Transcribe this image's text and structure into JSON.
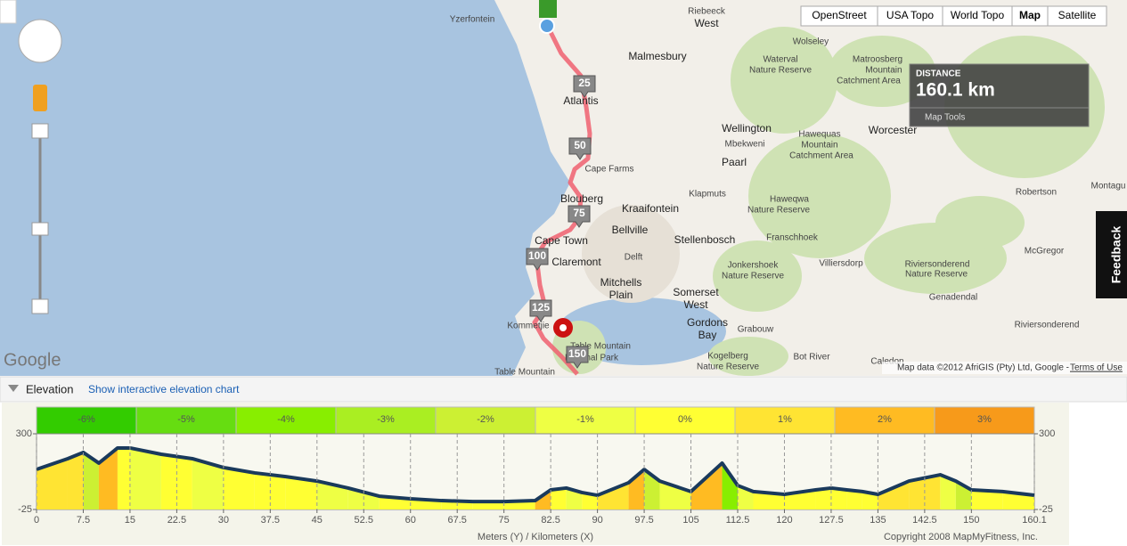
{
  "map_types": [
    "OpenStreet",
    "USA Topo",
    "World Topo",
    "Map",
    "Satellite"
  ],
  "active_map_type": "Map",
  "distance": {
    "heading": "DISTANCE",
    "value": "160.1 km",
    "tools": "Map Tools"
  },
  "map_labels": [
    "Yzerfontein",
    "Riebeeck",
    "West",
    "Wolseley",
    "Malmesbury",
    "Waterval",
    "Nature Reserve",
    "Matroosberg",
    "Mountain",
    "Catchment Area",
    "Atlantis",
    "Wellington",
    "Hawequas",
    "Mountain",
    "Catchment Area",
    "Worcester",
    "Mbekweni",
    "Paarl",
    "Cape Farms",
    "Klapmuts",
    "Robertson",
    "Blouberg",
    "Haweqwa",
    "Nature Reserve",
    "Kraaifontein",
    "Bellville",
    "Cape Town",
    "Stellenbosch",
    "Franschhoek",
    "Montagu",
    "McGregor",
    "Claremont",
    "Delft",
    "Jonkershoek",
    "Nature Reserve",
    "Villiersdorp",
    "Riviersonderend",
    "Nature Reserve",
    "Mitchells",
    "Plain",
    "Somerset",
    "West",
    "Genadendal",
    "Kommetjie",
    "Gordons",
    "Bay",
    "Grabouw",
    "Riviersonderend",
    "Table Mountain",
    "National Park",
    "Bot River",
    "Kogelberg",
    "Nature Reserve",
    "Table Mountain",
    "Caledon"
  ],
  "route_markers": [
    "25",
    "50",
    "75",
    "100",
    "125",
    "150"
  ],
  "google": "Google",
  "attribution": "Map data ©2012 AfriGIS (Pty) Ltd, Google - ",
  "terms": "Terms of Use",
  "feedback": "Feedback",
  "elevation_header": {
    "title": "Elevation",
    "link": "Show interactive elevation chart"
  },
  "chart_data": {
    "type": "area",
    "x": [
      0,
      5,
      7.5,
      10,
      13,
      15,
      20,
      25,
      30,
      35,
      40,
      45,
      50,
      55,
      60,
      65,
      70,
      75,
      80,
      82.5,
      85,
      87.5,
      90,
      95,
      97.5,
      100,
      105,
      110,
      112.5,
      115,
      120,
      125,
      127.5,
      130,
      132.5,
      135,
      140,
      145,
      147.5,
      150,
      155,
      160.1
    ],
    "values": [
      147,
      193,
      220,
      174,
      239,
      239,
      212,
      193,
      155,
      132,
      116,
      97,
      67,
      32,
      21,
      13,
      9,
      9,
      13,
      59,
      67,
      48,
      36,
      90,
      147,
      97,
      52,
      174,
      78,
      52,
      40,
      59,
      67,
      59,
      52,
      40,
      97,
      124,
      97,
      59,
      52,
      36
    ],
    "xlim": [
      0,
      160.1
    ],
    "ylim": [
      -25,
      300
    ],
    "xticks": [
      0,
      7.5,
      15,
      22.5,
      30,
      37.5,
      45,
      52.5,
      60,
      67.5,
      75,
      82.5,
      90,
      97.5,
      105,
      112.5,
      120,
      127.5,
      135,
      142.5,
      150,
      160.1
    ],
    "yticks": [
      -25,
      300
    ],
    "xgrid": true,
    "xlabel": "Meters (Y) / Kilometers (X)",
    "credit": "Copyright 2008 MapMyFitness, Inc.",
    "line_color": "#1a3a5c",
    "grade_legend": [
      {
        "value": -6,
        "label": "-6%",
        "color": "#33cc00"
      },
      {
        "value": -5,
        "label": "-5%",
        "color": "#66dd11"
      },
      {
        "value": -4,
        "label": "-4%",
        "color": "#88ee00"
      },
      {
        "value": -3,
        "label": "-3%",
        "color": "#aaee22"
      },
      {
        "value": -2,
        "label": "-2%",
        "color": "#ccf033"
      },
      {
        "value": -1,
        "label": "-1%",
        "color": "#eeff44"
      },
      {
        "value": 0,
        "label": "0%",
        "color": "#ffff33"
      },
      {
        "value": 1,
        "label": "1%",
        "color": "#ffe433"
      },
      {
        "value": 2,
        "label": "2%",
        "color": "#ffbb22"
      },
      {
        "value": 3,
        "label": "3%",
        "color": "#f79a1a"
      }
    ]
  }
}
